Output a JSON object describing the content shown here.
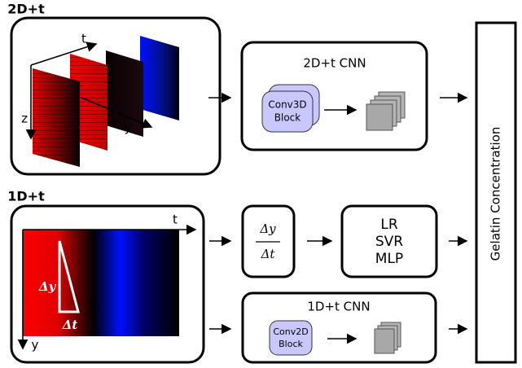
{
  "panel_2d": {
    "label": "2D+t",
    "axis_t": "t",
    "axis_z": "z",
    "axis_y": "y"
  },
  "cnn_2d": {
    "title": "2D+t CNN",
    "block": [
      "Conv3D",
      "Block"
    ]
  },
  "panel_1d": {
    "label": "1D+t",
    "axis_t": "t",
    "axis_y": "y",
    "delta_y": "Δy",
    "delta_t": "Δt"
  },
  "ratio": {
    "numerator": "Δy",
    "denominator": "Δt"
  },
  "models": [
    "LR",
    "SVR",
    "MLP"
  ],
  "cnn_1d": {
    "title": "1D+t CNN",
    "block": [
      "Conv2D",
      "Block"
    ]
  },
  "output": "Gelatin Concentration"
}
